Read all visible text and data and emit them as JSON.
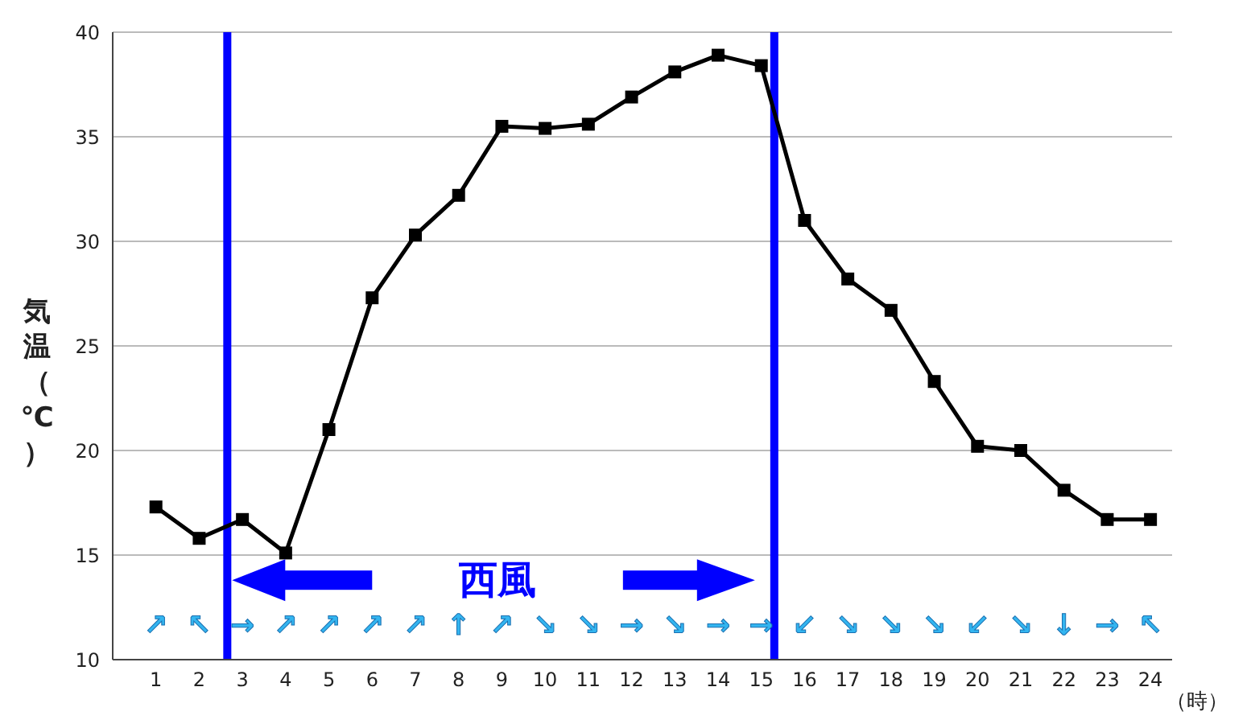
{
  "chart_data": {
    "type": "line",
    "xlabel": "（時）",
    "ylabel": "気温（℃）",
    "x": [
      1,
      2,
      3,
      4,
      5,
      6,
      7,
      8,
      9,
      10,
      11,
      12,
      13,
      14,
      15,
      16,
      17,
      18,
      19,
      20,
      21,
      22,
      23,
      24
    ],
    "series": [
      {
        "color": "#000000",
        "values": [
          17.3,
          15.8,
          16.7,
          15.1,
          21.0,
          27.3,
          30.3,
          32.2,
          35.5,
          35.4,
          35.6,
          36.9,
          38.1,
          38.9,
          38.4,
          31.0,
          28.2,
          26.7,
          23.3,
          20.2,
          20.0,
          18.1,
          16.7,
          16.7
        ]
      }
    ],
    "xlim": [
      0,
      24.5
    ],
    "xticks": [
      1,
      2,
      3,
      4,
      5,
      6,
      7,
      8,
      9,
      10,
      11,
      12,
      13,
      14,
      15,
      16,
      17,
      18,
      19,
      20,
      21,
      22,
      23,
      24
    ],
    "ylim": [
      10,
      40
    ],
    "yticks": [
      10,
      15,
      20,
      25,
      30,
      35,
      40
    ],
    "grid": "y",
    "marker": "square",
    "line_style": "solid",
    "ref_lines": [
      {
        "axis": "x",
        "value": 2.65,
        "color": "#0000ff"
      },
      {
        "axis": "x",
        "value": 15.3,
        "color": "#0000ff"
      }
    ],
    "annotations": [
      "西風",
      "↗",
      "↖",
      "→",
      "↗",
      "↗",
      "↗",
      "↗",
      "↑",
      "↗",
      "↘",
      "↘",
      "→",
      "↘",
      "→",
      "→",
      "↙",
      "↘",
      "↘",
      "↘",
      "↙",
      "↘",
      "↓",
      "→",
      "↖"
    ]
  }
}
